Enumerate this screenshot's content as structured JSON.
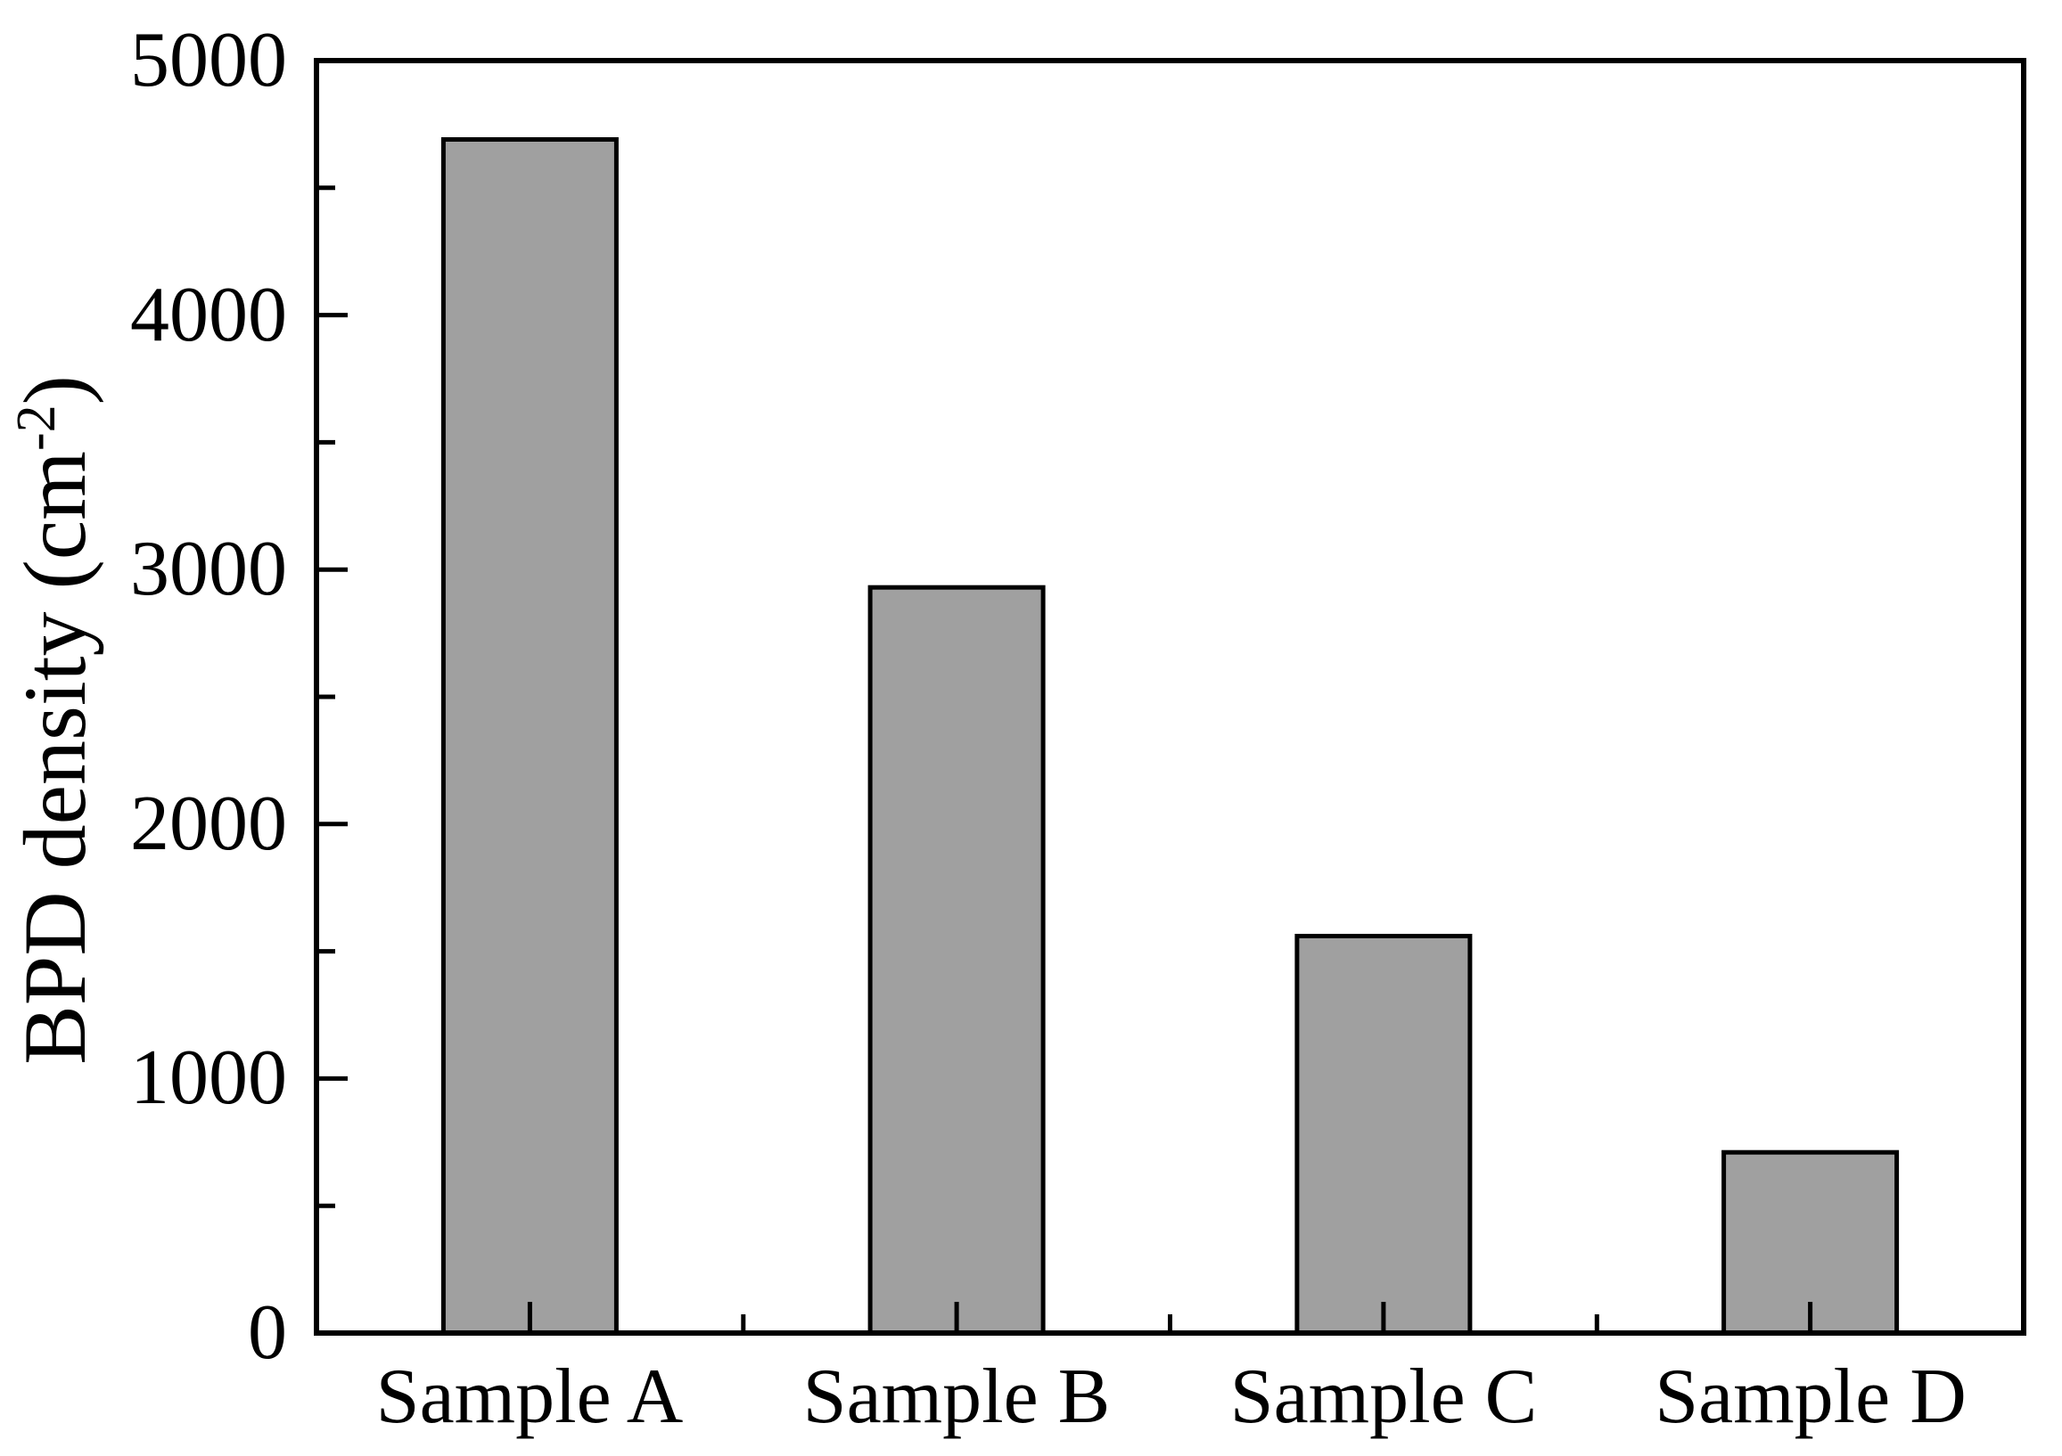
{
  "figure": {
    "background": "#ffffff",
    "text_color": "#000000"
  },
  "chart_data": {
    "type": "bar",
    "title": "",
    "xlabel": "",
    "ylabel": "BPD density (cm⁻²)",
    "ylabel_prefix": "BPD density (cm",
    "ylabel_sup": "-2",
    "ylabel_suffix": ")",
    "categories": [
      "Sample A",
      "Sample B",
      "Sample C",
      "Sample D"
    ],
    "values": [
      4690,
      2930,
      1560,
      710
    ],
    "ylim": [
      0,
      5000
    ],
    "yticks": [
      0,
      1000,
      2000,
      3000,
      4000,
      5000
    ],
    "ytick_labels": [
      "0",
      "1000",
      "2000",
      "3000",
      "4000",
      "5000"
    ],
    "ytick_minor_step": 500,
    "grid": false,
    "legend": false,
    "bar_color": "#a0a0a0",
    "bar_edge_color": "#000000",
    "axis_color": "#000000"
  }
}
